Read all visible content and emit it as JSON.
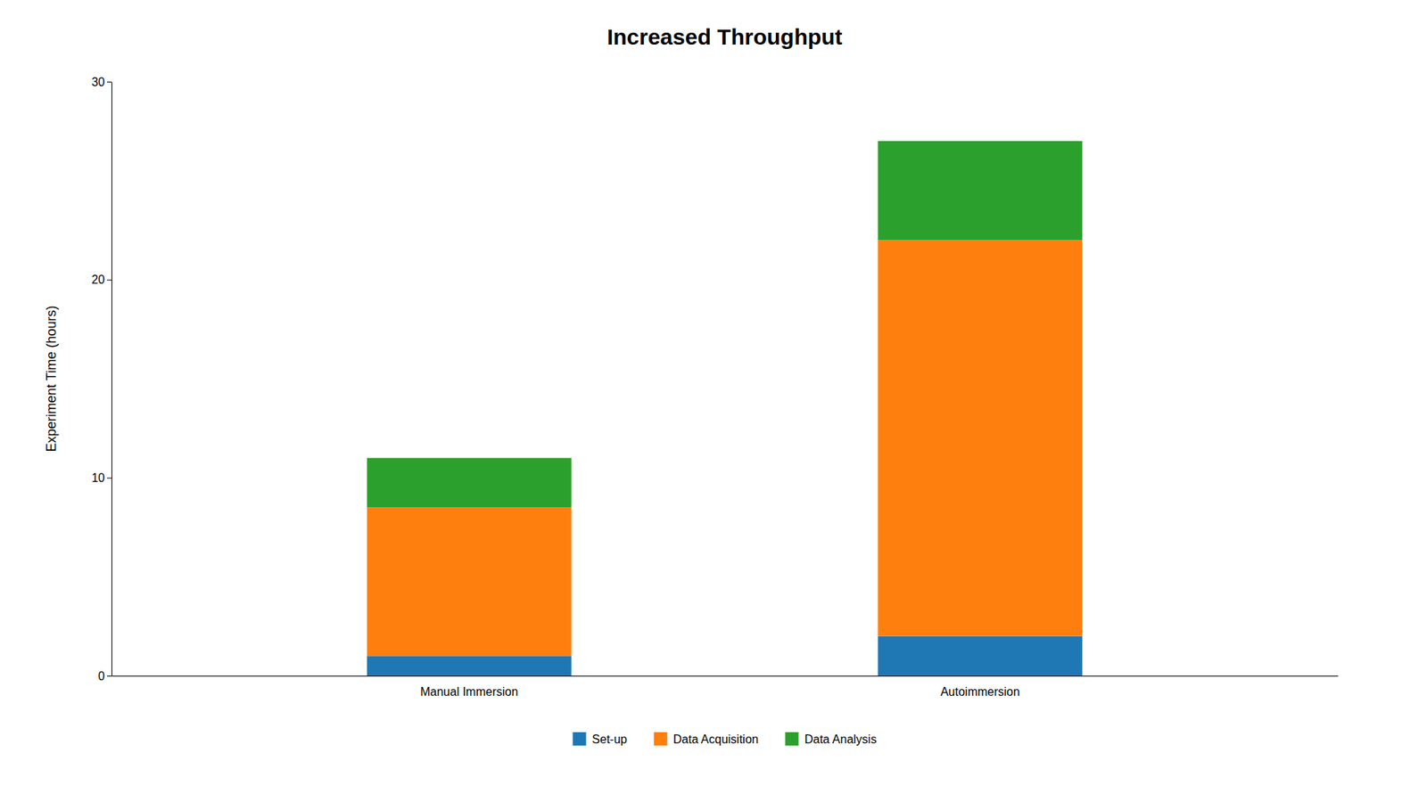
{
  "chart_data": {
    "type": "bar",
    "stacked": true,
    "title": "Increased Throughput",
    "ylabel": "Experiment Time (hours)",
    "categories": [
      "Manual Immersion",
      "Autoimmersion"
    ],
    "series": [
      {
        "name": "Set-up",
        "values": [
          1.0,
          2.0
        ]
      },
      {
        "name": "Data Acquisition",
        "values": [
          7.5,
          20.0
        ]
      },
      {
        "name": "Data Analysis",
        "values": [
          2.5,
          5.0
        ]
      }
    ],
    "ylim": [
      0,
      30
    ],
    "yticks": [
      0,
      10,
      20,
      30
    ],
    "grid": false,
    "legend": "bottom"
  }
}
